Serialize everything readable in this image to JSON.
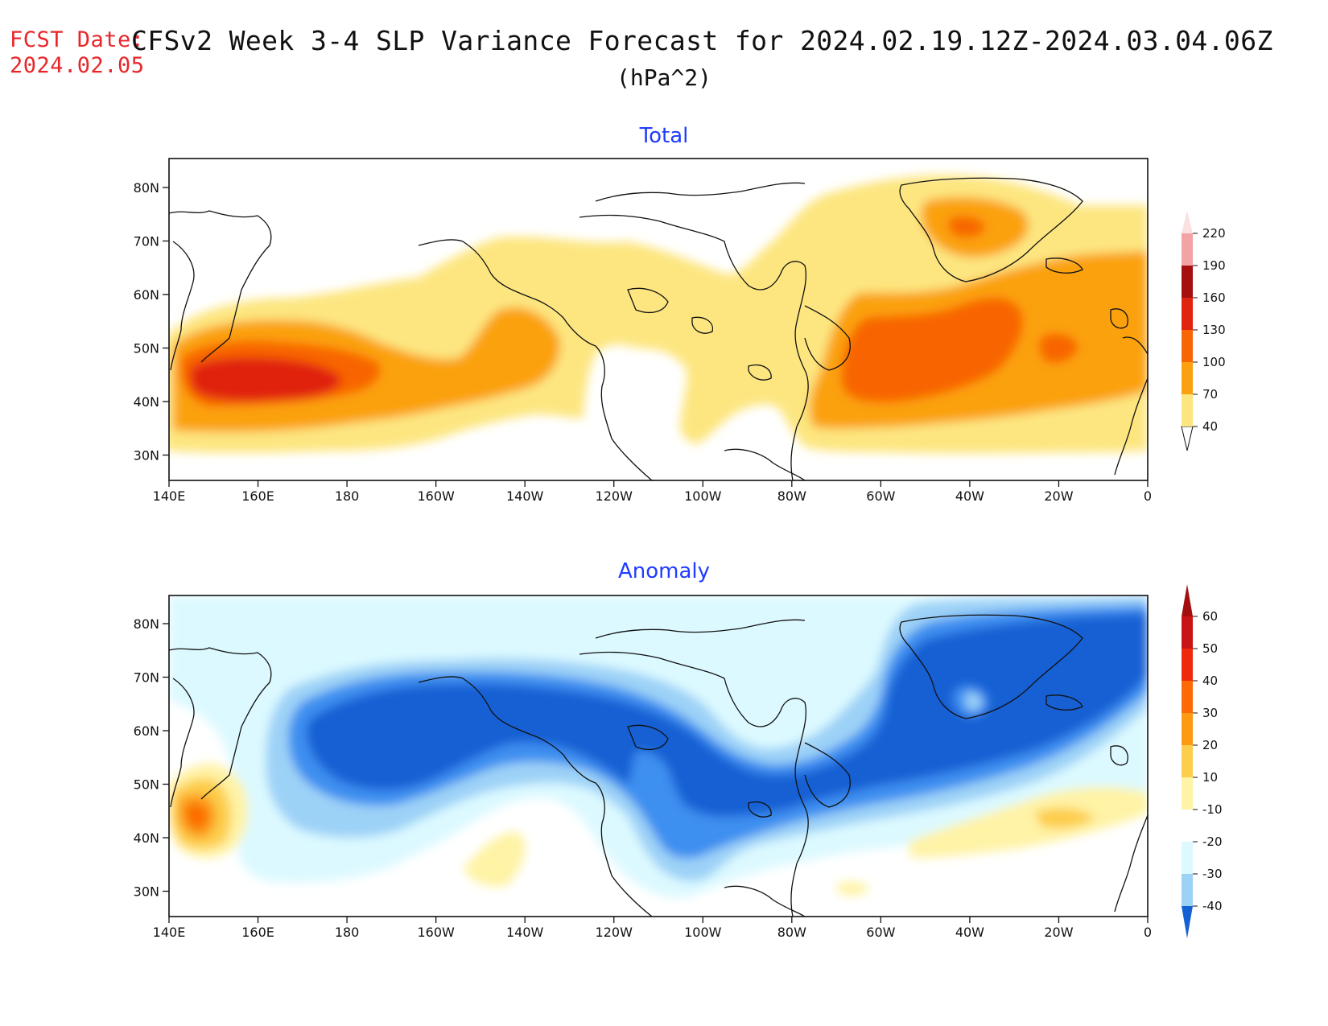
{
  "header": {
    "fcst_label": "FCST Date:",
    "fcst_date": "2024.02.05",
    "title": "CFSv2 Week 3-4 SLP Variance Forecast for 2024.02.19.12Z-2024.03.04.06Z",
    "units": "(hPa^2)"
  },
  "panels": [
    {
      "title": "Total",
      "lat_ticks": [
        "80N",
        "70N",
        "60N",
        "50N",
        "40N",
        "30N"
      ],
      "lon_ticks": [
        "140E",
        "160E",
        "180",
        "160W",
        "140W",
        "120W",
        "100W",
        "80W",
        "60W",
        "40W",
        "20W",
        "0"
      ],
      "colorbar": {
        "levels": [
          "40",
          "70",
          "100",
          "130",
          "160",
          "190",
          "220"
        ],
        "colors": [
          "#fde680",
          "#fba10f",
          "#f86505",
          "#e02410",
          "#a50f0f",
          "#f2a3a3",
          "#fbe0e0"
        ]
      }
    },
    {
      "title": "Anomaly",
      "lat_ticks": [
        "80N",
        "70N",
        "60N",
        "50N",
        "40N",
        "30N"
      ],
      "lon_ticks": [
        "140E",
        "160E",
        "180",
        "160W",
        "140W",
        "120W",
        "100W",
        "80W",
        "60W",
        "40W",
        "20W",
        "0"
      ],
      "colorbar": {
        "levels": [
          "60",
          "50",
          "40",
          "30",
          "20",
          "10",
          "-10",
          "-20",
          "-30",
          "-40"
        ],
        "colors": [
          "#c81414",
          "#ef2a0c",
          "#fb6a06",
          "#fc9a12",
          "#fdcd4c",
          "#fff3a6",
          "#ffffff",
          "#dcf9ff",
          "#9dd2f7",
          "#3d8ff0",
          "#1560d4"
        ]
      }
    }
  ],
  "colors": {
    "total_40": "#fde680",
    "total_70": "#fba10f",
    "total_100": "#f86505",
    "total_130": "#e02410",
    "anom_pos_10": "#fff3a6",
    "anom_pos_20": "#fdcd4c",
    "anom_pos_30": "#fc9a12",
    "anom_pos_40": "#fb6a06",
    "anom_pos_50": "#ef2a0c",
    "anom_neg_10": "#dcf9ff",
    "anom_neg_20": "#9dd2f7",
    "anom_neg_30": "#3d8ff0",
    "anom_neg_40": "#1560d4",
    "panel_title": "#1f3cff",
    "fcst": "#e8262a"
  }
}
